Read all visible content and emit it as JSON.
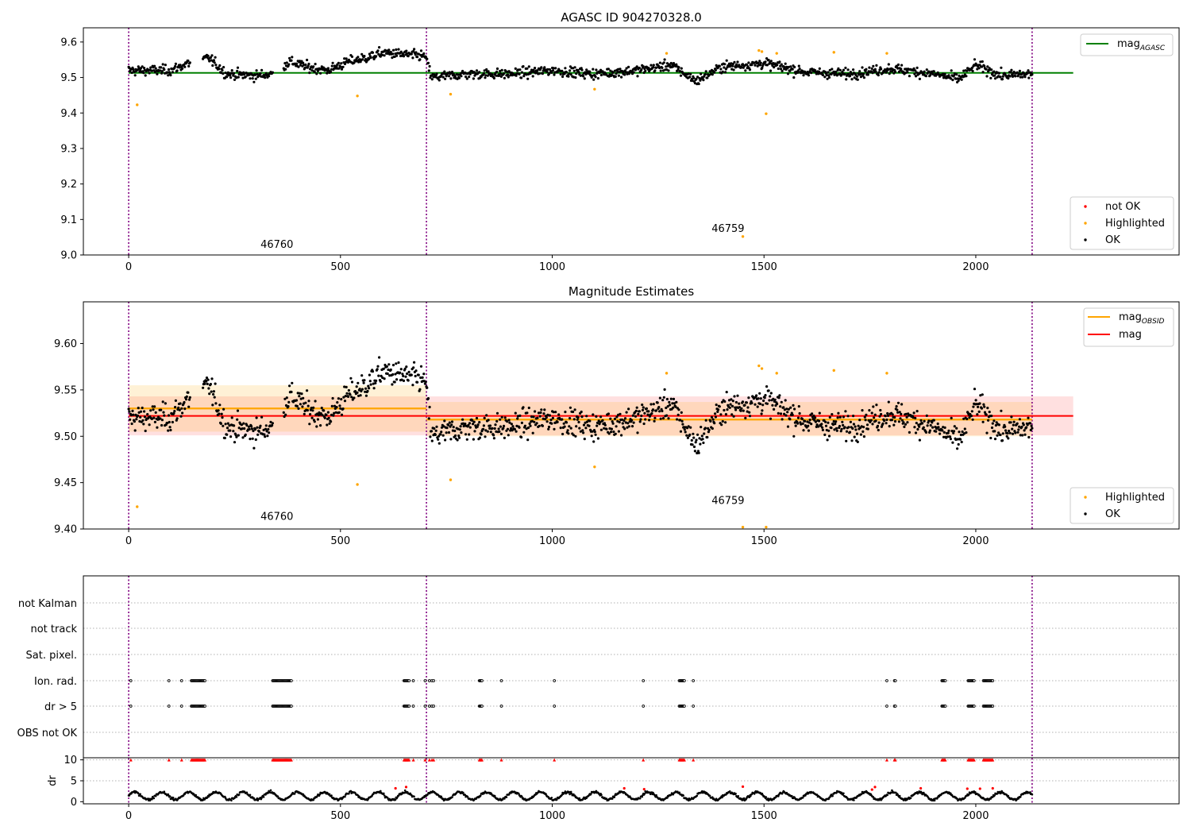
{
  "chart_data": [
    {
      "type": "scatter",
      "title": "AGASC ID 904270328.0",
      "xlim": [
        -107,
        2480
      ],
      "ylim": [
        9.0,
        9.64
      ],
      "xticks": [
        0,
        500,
        1000,
        1500,
        2000
      ],
      "yticks": [
        9.0,
        9.1,
        9.2,
        9.3,
        9.4,
        9.5,
        9.6
      ],
      "xtick_labels": [
        "0",
        "500",
        "1000",
        "1500",
        "2000"
      ],
      "ytick_labels": [
        "9.0",
        "9.1",
        "9.2",
        "9.3",
        "9.4",
        "9.5",
        "9.6"
      ],
      "obsid_boundaries": [
        0,
        703,
        2133
      ],
      "annotations": [
        {
          "text": "46760",
          "x": 350,
          "y": 9.02
        },
        {
          "text": "46759",
          "x": 1415,
          "y": 9.065
        }
      ],
      "lines": [
        {
          "name": "mag",
          "subscript": "AGASC",
          "color": "#008000",
          "y": 9.513,
          "x": [
            0,
            2230
          ]
        }
      ],
      "legends": [
        {
          "placement": "upper right",
          "entries": [
            {
              "label": "mag",
              "subscript": "AGASC",
              "symbol": "line",
              "color": "#008000"
            }
          ]
        },
        {
          "placement": "lower right",
          "entries": [
            {
              "label": "not OK",
              "symbol": "dot",
              "color": "#ff0000"
            },
            {
              "label": "Highlighted",
              "symbol": "dot",
              "color": "#ffa500"
            },
            {
              "label": "OK",
              "symbol": "dot",
              "color": "#000000"
            }
          ]
        }
      ],
      "highlighted_points": {
        "color": "#ffa500",
        "x": [
          20,
          540,
          760,
          1100,
          1270,
          1450,
          1488,
          1495,
          1505,
          1530,
          1665,
          1790
        ],
        "y": [
          9.423,
          9.448,
          9.453,
          9.467,
          9.568,
          9.052,
          9.576,
          9.573,
          9.398,
          9.568,
          9.571,
          9.568
        ]
      },
      "ok_series": {
        "color": "#000000",
        "n_points": 1400,
        "gaps": [
          [
            145,
            175
          ],
          [
            340,
            365
          ]
        ],
        "trend": [
          [
            0,
            9.52
          ],
          [
            100,
            9.52
          ],
          [
            140,
            9.54
          ],
          [
            190,
            9.555
          ],
          [
            230,
            9.51
          ],
          [
            300,
            9.505
          ],
          [
            340,
            9.51
          ],
          [
            380,
            9.545
          ],
          [
            420,
            9.53
          ],
          [
            470,
            9.52
          ],
          [
            520,
            9.545
          ],
          [
            560,
            9.555
          ],
          [
            600,
            9.57
          ],
          [
            650,
            9.565
          ],
          [
            700,
            9.56
          ],
          [
            715,
            9.5
          ],
          [
            800,
            9.51
          ],
          [
            900,
            9.51
          ],
          [
            1000,
            9.52
          ],
          [
            1100,
            9.51
          ],
          [
            1200,
            9.52
          ],
          [
            1280,
            9.535
          ],
          [
            1340,
            9.49
          ],
          [
            1400,
            9.53
          ],
          [
            1500,
            9.54
          ],
          [
            1600,
            9.515
          ],
          [
            1700,
            9.51
          ],
          [
            1800,
            9.525
          ],
          [
            1900,
            9.51
          ],
          [
            1960,
            9.495
          ],
          [
            2000,
            9.535
          ],
          [
            2060,
            9.505
          ],
          [
            2133,
            9.51
          ]
        ]
      }
    },
    {
      "type": "scatter",
      "title": "Magnitude Estimates",
      "xlim": [
        -107,
        2480
      ],
      "ylim": [
        9.4,
        9.645
      ],
      "xticks": [
        0,
        500,
        1000,
        1500,
        2000
      ],
      "yticks": [
        9.4,
        9.45,
        9.5,
        9.55,
        9.6
      ],
      "xtick_labels": [
        "0",
        "500",
        "1000",
        "1500",
        "2000"
      ],
      "ytick_labels": [
        "9.40",
        "9.45",
        "9.50",
        "9.55",
        "9.60"
      ],
      "obsid_boundaries": [
        0,
        703,
        2133
      ],
      "annotations": [
        {
          "text": "46760",
          "x": 350,
          "y": 9.41
        },
        {
          "text": "46759",
          "x": 1415,
          "y": 9.427
        }
      ],
      "lines": [
        {
          "name": "mag",
          "subscript": "OBSID",
          "color": "#ffa500",
          "segments": [
            {
              "x": [
                0,
                703
              ],
              "y": 9.53,
              "band": [
                9.505,
                9.555
              ]
            },
            {
              "x": [
                703,
                2133
              ],
              "y": 9.518,
              "band": [
                9.5,
                9.537
              ]
            }
          ]
        },
        {
          "name": "mag",
          "color": "#ff0000",
          "y": 9.522,
          "x": [
            0,
            2230
          ],
          "band": [
            9.501,
            9.543
          ]
        }
      ],
      "legends": [
        {
          "placement": "upper right",
          "entries": [
            {
              "label": "mag",
              "subscript": "OBSID",
              "symbol": "line",
              "color": "#ffa500"
            },
            {
              "label": "mag",
              "symbol": "line",
              "color": "#ff0000"
            }
          ]
        },
        {
          "placement": "lower right",
          "entries": [
            {
              "label": "Highlighted",
              "symbol": "dot",
              "color": "#ffa500"
            },
            {
              "label": "OK",
              "symbol": "dot",
              "color": "#000000"
            }
          ]
        }
      ],
      "highlighted_points": {
        "color": "#ffa500",
        "x": [
          20,
          540,
          760,
          1100,
          1270,
          1450,
          1488,
          1495,
          1505,
          1530,
          1665,
          1790
        ],
        "y": [
          9.424,
          9.448,
          9.453,
          9.467,
          9.568,
          9.402,
          9.576,
          9.573,
          9.402,
          9.568,
          9.571,
          9.568
        ]
      }
    },
    {
      "type": "scatter",
      "title": "",
      "xlim": [
        -107,
        2480
      ],
      "xticks": [
        0,
        500,
        1000,
        1500,
        2000
      ],
      "xtick_labels": [
        "0",
        "500",
        "1000",
        "1500",
        "2000"
      ],
      "obsid_boundaries": [
        0,
        703,
        2133
      ],
      "flag_rows": [
        "not Kalman",
        "not track",
        "Sat. pixel.",
        "Ion. rad.",
        "dr > 5",
        "OBS not OK"
      ],
      "flag_x": [
        5,
        95,
        125,
        148,
        150,
        152,
        154,
        156,
        158,
        160,
        162,
        164,
        166,
        168,
        170,
        172,
        174,
        176,
        178,
        180,
        340,
        342,
        344,
        346,
        348,
        350,
        352,
        354,
        356,
        358,
        360,
        362,
        364,
        366,
        368,
        370,
        372,
        374,
        376,
        378,
        380,
        382,
        384,
        650,
        652,
        654,
        656,
        658,
        660,
        662,
        672,
        700,
        710,
        716,
        720,
        828,
        830,
        832,
        834,
        880,
        1005,
        1215,
        1300,
        1302,
        1304,
        1306,
        1308,
        1310,
        1312,
        1333,
        1790,
        1808,
        1810,
        1920,
        1922,
        1924,
        1926,
        1928,
        1982,
        1984,
        1986,
        1988,
        1990,
        1992,
        1994,
        1996,
        2018,
        2020,
        2022,
        2024,
        2026,
        2028,
        2030,
        2032,
        2034,
        2036,
        2038,
        2040
      ],
      "flagged_in_rows": [
        "Ion. rad.",
        "dr > 5"
      ],
      "dr": {
        "ylabel": "dr",
        "ylim": [
          -0.5,
          10.5
        ],
        "yticks": [
          0,
          5,
          10
        ],
        "ytick_labels": [
          "0",
          "5",
          "10"
        ],
        "clip_value": 10,
        "not_ok_x": [
          630,
          655,
          1170,
          1217,
          1450,
          1755,
          1762,
          1870,
          1980,
          2010,
          2040
        ],
        "not_ok_y": [
          3.2,
          3.5,
          3.2,
          3.0,
          3.6,
          2.9,
          3.5,
          3.2,
          3.1,
          3.1,
          3.2
        ],
        "n_ok_points": 1400,
        "ok_range": [
          0.3,
          3.0
        ]
      }
    }
  ]
}
